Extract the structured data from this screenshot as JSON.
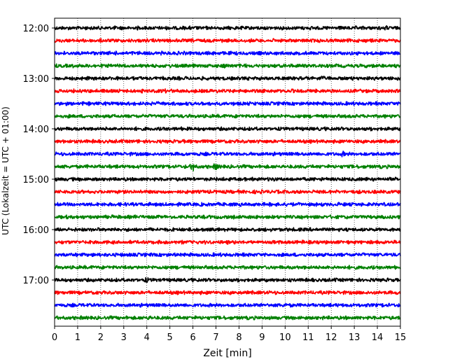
{
  "chart_data": {
    "type": "line",
    "subtype": "helicorder-seismogram",
    "title": "",
    "xlabel": "Zeit  [min]",
    "ylabel": "UTC (Lokalzeit = UTC + 01:00)",
    "xlim": [
      0,
      15
    ],
    "x_ticks": [
      0,
      1,
      2,
      3,
      4,
      5,
      6,
      7,
      8,
      9,
      10,
      11,
      12,
      13,
      14,
      15
    ],
    "x_tick_labels": [
      "0",
      "1",
      "2",
      "3",
      "4",
      "5",
      "6",
      "7",
      "8",
      "9",
      "10",
      "11",
      "12",
      "13",
      "14",
      "15"
    ],
    "y_tick_labels": [
      "12:00",
      "13:00",
      "14:00",
      "15:00",
      "16:00",
      "17:00"
    ],
    "grid": "vertical dotted at each minute",
    "trace_colors_cycle": [
      "#000000",
      "#ff0000",
      "#0000ff",
      "#008000"
    ],
    "trace_start_times": [
      "12:00",
      "12:15",
      "12:30",
      "12:45",
      "13:00",
      "13:15",
      "13:30",
      "13:45",
      "14:00",
      "14:15",
      "14:30",
      "14:45",
      "15:00",
      "15:15",
      "15:30",
      "15:45",
      "16:00",
      "16:15",
      "16:30",
      "16:45",
      "17:00",
      "17:15",
      "17:30",
      "17:45"
    ],
    "events": [
      {
        "trace_start": "14:45",
        "minute": 6.0,
        "relative_amplitude": 3.0
      },
      {
        "trace_start": "14:45",
        "minute": 7.0,
        "relative_amplitude": 2.2
      },
      {
        "trace_start": "12:45",
        "minute": 7.4,
        "relative_amplitude": 1.6
      },
      {
        "trace_start": "13:00",
        "minute": 11.6,
        "relative_amplitude": 1.8
      },
      {
        "trace_start": "14:30",
        "minute": 12.5,
        "relative_amplitude": 1.7
      },
      {
        "trace_start": "17:00",
        "minute": 4.0,
        "relative_amplitude": 1.6
      },
      {
        "trace_start": "17:45",
        "minute": 4.1,
        "relative_amplitude": 1.5
      },
      {
        "trace_start": "17:30",
        "minute": 10.0,
        "relative_amplitude": 1.5
      },
      {
        "trace_start": "15:00",
        "minute": 9.5,
        "relative_amplitude": 1.5
      },
      {
        "trace_start": "13:15",
        "minute": 4.7,
        "relative_amplitude": 1.4
      },
      {
        "trace_start": "12:00",
        "minute": 14.4,
        "relative_amplitude": 1.4
      },
      {
        "trace_start": "12:45",
        "minute": 10.7,
        "relative_amplitude": 1.3
      }
    ]
  }
}
